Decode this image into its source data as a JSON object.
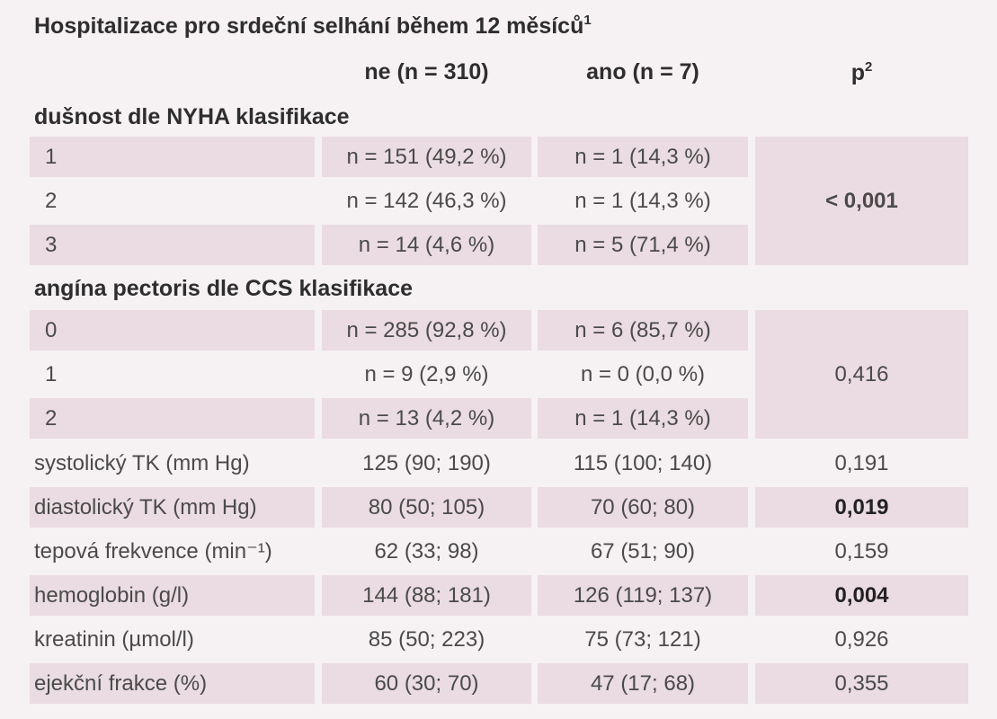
{
  "title": "Hospitalizace pro srdeční selhání během 12 měsíců",
  "title_sup": "1",
  "columns": {
    "ne": "ne (n = 310)",
    "ano": "ano (n = 7)",
    "p": "p",
    "p_sup": "2"
  },
  "nyha": {
    "header": "dušnost dle NYHA klasifikace",
    "rows": [
      {
        "label": "1",
        "ne": "n = 151 (49,2 %)",
        "ano": "n = 1 (14,3 %)"
      },
      {
        "label": "2",
        "ne": "n = 142 (46,3 %)",
        "ano": "n = 1 (14,3 %)"
      },
      {
        "label": "3",
        "ne": "n = 14 (4,6 %)",
        "ano": "n = 5 (71,4 %)"
      }
    ],
    "p": "< 0,001"
  },
  "ccs": {
    "header": "angína pectoris dle CCS klasifikace",
    "rows": [
      {
        "label": "0",
        "ne": "n = 285 (92,8 %)",
        "ano": "n = 6 (85,7 %)"
      },
      {
        "label": "1",
        "ne": "n = 9 (2,9 %)",
        "ano": "n = 0 (0,0 %)"
      },
      {
        "label": "2",
        "ne": "n = 13 (4,2 %)",
        "ano": "n = 1 (14,3 %)"
      }
    ],
    "p": "0,416"
  },
  "rows": [
    {
      "label": "systolický TK (mm Hg)",
      "ne": "125 (90; 190)",
      "ano": "115 (100; 140)",
      "p": "0,191"
    },
    {
      "label": "diastolický TK (mm Hg)",
      "ne": "80 (50; 105)",
      "ano": "70 (60; 80)",
      "p": "0,019"
    },
    {
      "label": "tepová frekvence (min⁻¹)",
      "ne": "62 (33; 98)",
      "ano": "67 (51; 90)",
      "p": "0,159"
    },
    {
      "label": "hemoglobin (g/l)",
      "ne": "144 (88; 181)",
      "ano": "126 (119; 137)",
      "p": "0,004"
    },
    {
      "label": "kreatinin (µmol/l)",
      "ne": "85 (50; 223)",
      "ano": "75 (73; 121)",
      "p": "0,926"
    },
    {
      "label": "ejekční frakce (%)",
      "ne": "60 (30; 70)",
      "ano": "47 (17; 68)",
      "p": "0,355"
    }
  ]
}
